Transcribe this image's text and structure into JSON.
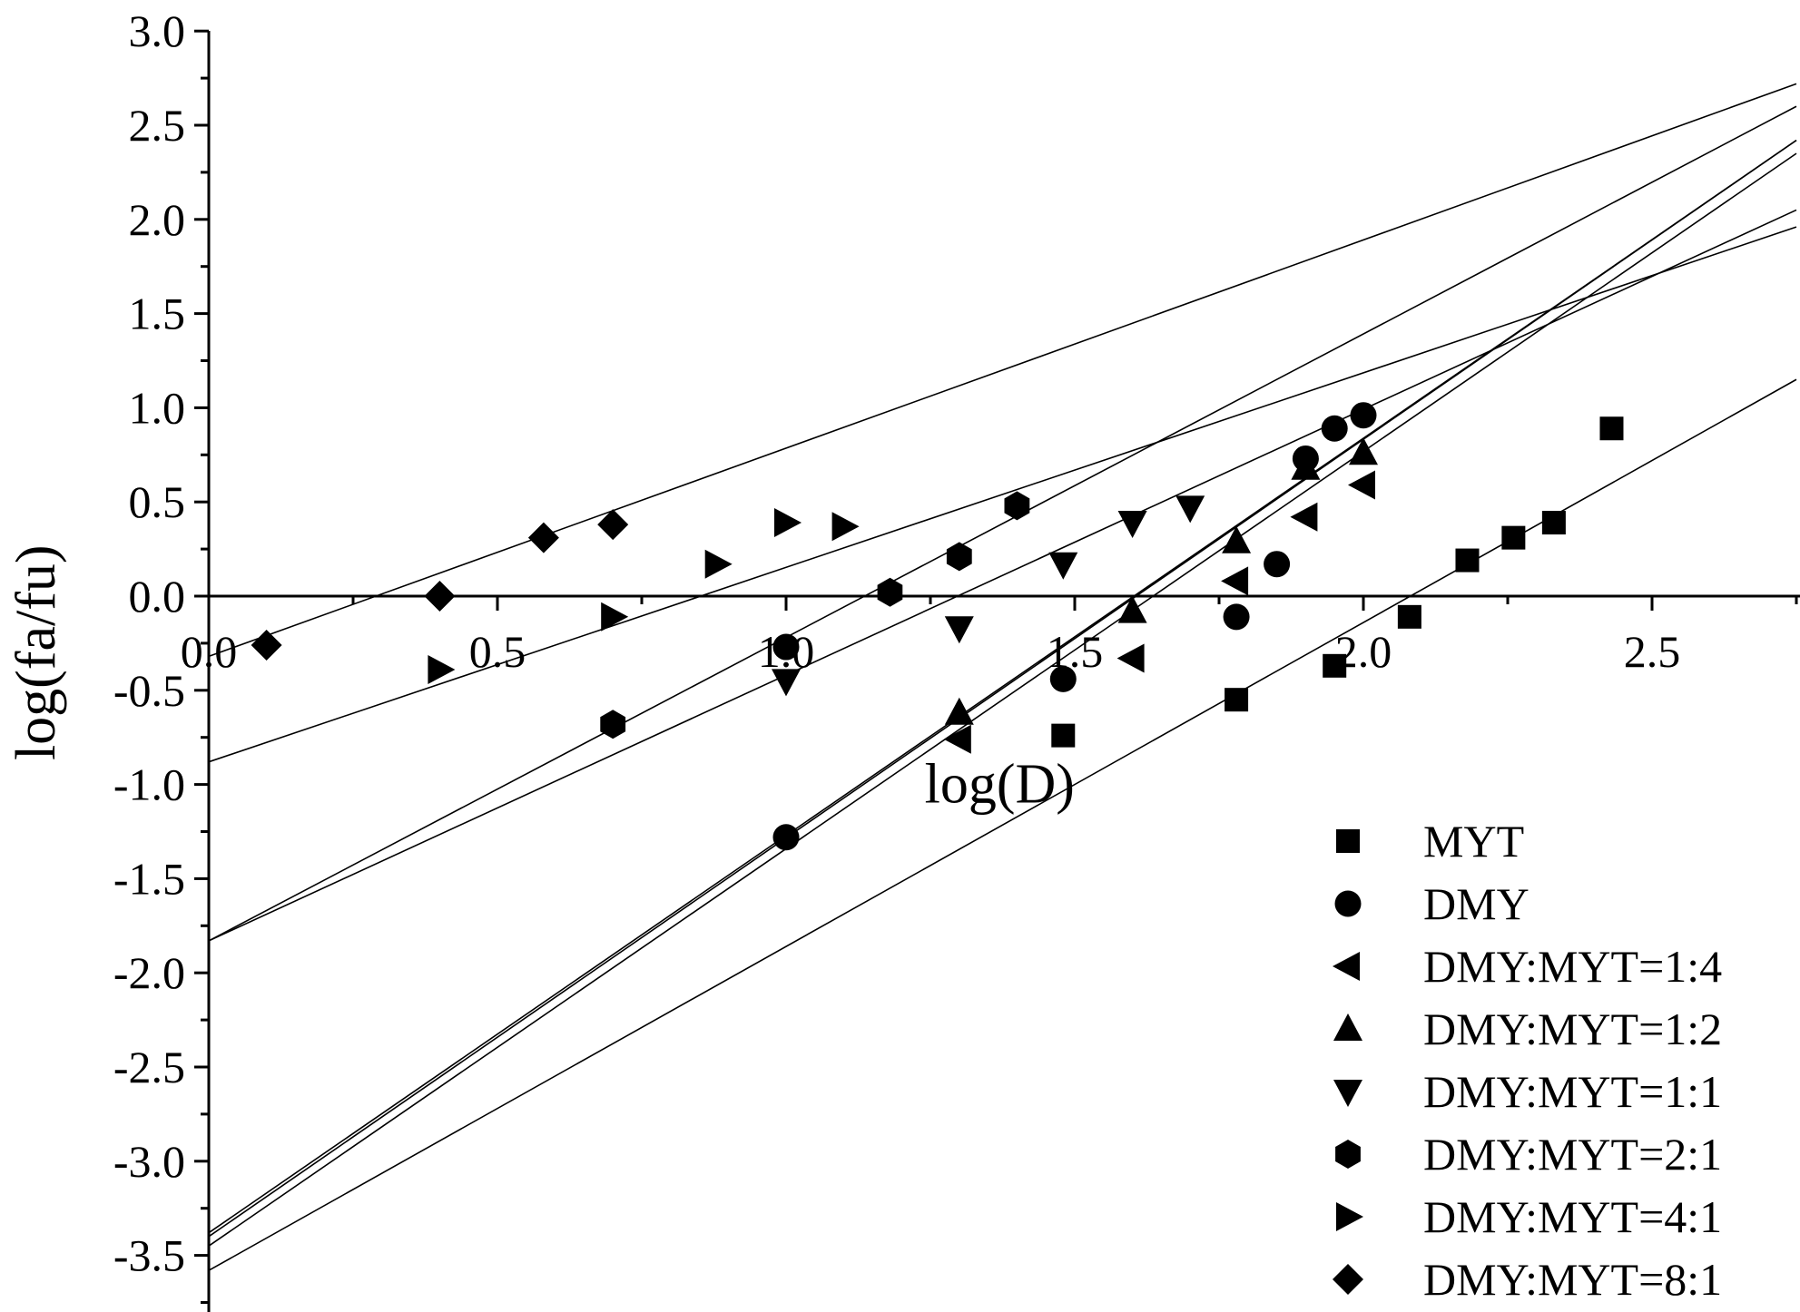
{
  "chart_data": {
    "type": "scatter",
    "title": "",
    "xlabel": "log(D)",
    "ylabel": "log(fa/fu)",
    "xlim": [
      0.0,
      2.75
    ],
    "ylim": [
      -3.7,
      3.0
    ],
    "x_ticks": [
      0.0,
      0.5,
      1.0,
      1.5,
      2.0,
      2.5
    ],
    "x_tick_labels": [
      "0.0",
      "0.5",
      "1.0",
      "1.5",
      "2.0",
      "2.5"
    ],
    "y_ticks": [
      3.0,
      2.5,
      2.0,
      1.5,
      1.0,
      0.5,
      0.0,
      -0.5,
      -1.0,
      -1.5,
      -2.0,
      -2.5,
      -3.0,
      -3.5
    ],
    "y_tick_labels": [
      "3.0",
      "2.5",
      "2.0",
      "1.5",
      "1.0",
      "0.5",
      "0.0",
      "-0.5",
      "-1.0",
      "-1.5",
      "-2.0",
      "-2.5",
      "-3.0",
      "-3.5"
    ],
    "grid": false,
    "legend_position": "bottom-right",
    "series": [
      {
        "name": "MYT",
        "marker": "square",
        "points": [
          [
            1.48,
            -0.74
          ],
          [
            1.78,
            -0.55
          ],
          [
            1.95,
            -0.37
          ],
          [
            2.08,
            -0.11
          ],
          [
            2.18,
            0.19
          ],
          [
            2.26,
            0.31
          ],
          [
            2.33,
            0.39
          ],
          [
            2.43,
            0.89
          ]
        ],
        "fit": [
          [
            0.0,
            -3.58
          ],
          [
            2.75,
            1.15
          ]
        ]
      },
      {
        "name": "DMY",
        "marker": "circle",
        "points": [
          [
            1.0,
            -1.28
          ],
          [
            1.0,
            -0.27
          ],
          [
            1.48,
            -0.44
          ],
          [
            1.78,
            -0.11
          ],
          [
            1.85,
            0.17
          ],
          [
            1.9,
            0.73
          ],
          [
            1.95,
            0.89
          ],
          [
            2.0,
            0.96
          ]
        ],
        "fit": [
          [
            0.0,
            -3.38
          ],
          [
            2.75,
            2.42
          ]
        ]
      },
      {
        "name": "DMY:MYT=1:4",
        "marker": "triangle-left",
        "points": [
          [
            1.3,
            -0.76
          ],
          [
            1.6,
            -0.33
          ],
          [
            1.78,
            0.08
          ],
          [
            1.9,
            0.42
          ],
          [
            2.0,
            0.59
          ]
        ],
        "fit": [
          [
            0.0,
            -3.45
          ],
          [
            2.75,
            2.35
          ]
        ]
      },
      {
        "name": "DMY:MYT=1:2",
        "marker": "triangle-up",
        "points": [
          [
            1.3,
            -0.62
          ],
          [
            1.6,
            -0.08
          ],
          [
            1.78,
            0.29
          ],
          [
            1.9,
            0.68
          ],
          [
            2.0,
            0.76
          ]
        ],
        "fit": [
          [
            0.0,
            -3.4
          ],
          [
            2.75,
            2.42
          ]
        ]
      },
      {
        "name": "DMY:MYT=1:1",
        "marker": "triangle-down",
        "points": [
          [
            1.0,
            -0.45
          ],
          [
            1.3,
            -0.17
          ],
          [
            1.48,
            0.17
          ],
          [
            1.6,
            0.39
          ],
          [
            1.7,
            0.47
          ]
        ],
        "fit": [
          [
            0.0,
            -1.83
          ],
          [
            2.75,
            2.05
          ]
        ]
      },
      {
        "name": "DMY:MYT=2:1",
        "marker": "hexagon",
        "points": [
          [
            0.7,
            -0.68
          ],
          [
            1.18,
            0.02
          ],
          [
            1.3,
            0.21
          ],
          [
            1.4,
            0.48
          ]
        ],
        "fit": [
          [
            0.0,
            -1.83
          ],
          [
            2.75,
            2.6
          ]
        ]
      },
      {
        "name": "DMY:MYT=4:1",
        "marker": "triangle-right",
        "points": [
          [
            0.4,
            -0.39
          ],
          [
            0.7,
            -0.11
          ],
          [
            0.88,
            0.17
          ],
          [
            1.0,
            0.39
          ],
          [
            1.1,
            0.37
          ]
        ],
        "fit": [
          [
            0.0,
            -0.88
          ],
          [
            2.75,
            1.96
          ]
        ]
      },
      {
        "name": "DMY:MYT=8:1",
        "marker": "diamond",
        "points": [
          [
            0.1,
            -0.26
          ],
          [
            0.4,
            0.0
          ],
          [
            0.58,
            0.31
          ],
          [
            0.7,
            0.38
          ]
        ],
        "fit": [
          [
            0.0,
            -0.32
          ],
          [
            2.75,
            2.72
          ]
        ]
      }
    ]
  }
}
